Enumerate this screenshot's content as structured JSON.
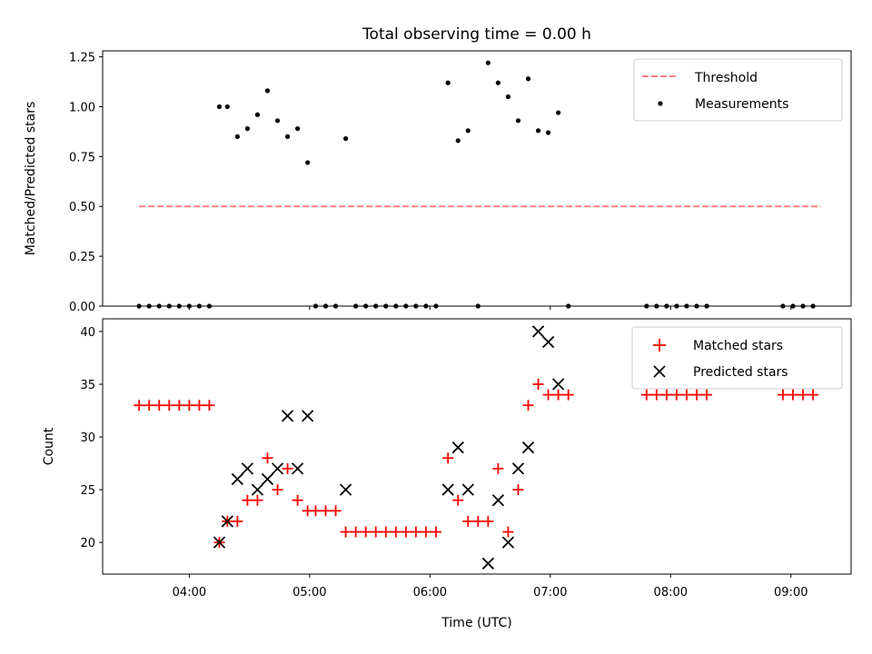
{
  "chart_data": [
    {
      "type": "scatter",
      "title": "Total observing time = 0.00 h",
      "xlabel": "",
      "ylabel": "Matched/Predicted stars",
      "ylim": [
        0,
        1.28
      ],
      "yticks": [
        0,
        0.25,
        0.5,
        0.75,
        1.0,
        1.25
      ],
      "ytick_labels": [
        "0.00",
        "0.25",
        "0.50",
        "0.75",
        "1.00",
        "1.25"
      ],
      "xlim_hours": [
        3.28,
        9.5
      ],
      "grid": false,
      "legend_position": "top-right",
      "legend": [
        "Threshold",
        "Measurements"
      ],
      "threshold": {
        "name": "Threshold",
        "value": 0.5,
        "x_start": "03:35",
        "x_end": "09:15",
        "color": "#ff7f7f",
        "style": "dashed"
      },
      "measurements": {
        "name": "Measurements",
        "color": "#000000",
        "points": [
          [
            "03:35",
            0.0
          ],
          [
            "03:40",
            0.0
          ],
          [
            "03:45",
            0.0
          ],
          [
            "03:50",
            0.0
          ],
          [
            "03:55",
            0.0
          ],
          [
            "04:00",
            0.0
          ],
          [
            "04:05",
            0.0
          ],
          [
            "04:10",
            0.0
          ],
          [
            "04:15",
            1.0
          ],
          [
            "04:19",
            1.0
          ],
          [
            "04:24",
            0.85
          ],
          [
            "04:29",
            0.89
          ],
          [
            "04:34",
            0.96
          ],
          [
            "04:39",
            1.08
          ],
          [
            "04:44",
            0.93
          ],
          [
            "04:49",
            0.85
          ],
          [
            "04:54",
            0.89
          ],
          [
            "04:59",
            0.72
          ],
          [
            "05:03",
            0.0
          ],
          [
            "05:08",
            0.0
          ],
          [
            "05:13",
            0.0
          ],
          [
            "05:18",
            0.84
          ],
          [
            "05:23",
            0.0
          ],
          [
            "05:28",
            0.0
          ],
          [
            "05:33",
            0.0
          ],
          [
            "05:38",
            0.0
          ],
          [
            "05:43",
            0.0
          ],
          [
            "05:48",
            0.0
          ],
          [
            "05:53",
            0.0
          ],
          [
            "05:58",
            0.0
          ],
          [
            "06:03",
            0.0
          ],
          [
            "06:09",
            1.12
          ],
          [
            "06:14",
            0.83
          ],
          [
            "06:19",
            0.88
          ],
          [
            "06:24",
            0.0
          ],
          [
            "06:29",
            1.22
          ],
          [
            "06:34",
            1.12
          ],
          [
            "06:39",
            1.05
          ],
          [
            "06:44",
            0.93
          ],
          [
            "06:49",
            1.14
          ],
          [
            "06:54",
            0.88
          ],
          [
            "06:59",
            0.87
          ],
          [
            "07:04",
            0.97
          ],
          [
            "07:09",
            0.0
          ],
          [
            "07:48",
            0.0
          ],
          [
            "07:53",
            0.0
          ],
          [
            "07:58",
            0.0
          ],
          [
            "08:03",
            0.0
          ],
          [
            "08:08",
            0.0
          ],
          [
            "08:13",
            0.0
          ],
          [
            "08:18",
            0.0
          ],
          [
            "08:56",
            0.0
          ],
          [
            "09:01",
            0.0
          ],
          [
            "09:06",
            0.0
          ],
          [
            "09:11",
            0.0
          ]
        ]
      }
    },
    {
      "type": "scatter",
      "title": "",
      "xlabel": "Time (UTC)",
      "ylabel": "Count",
      "ylim": [
        17,
        41.2
      ],
      "yticks": [
        20,
        25,
        30,
        35,
        40
      ],
      "xlim_hours": [
        3.28,
        9.5
      ],
      "xticks": [
        "04:00",
        "05:00",
        "06:00",
        "07:00",
        "08:00",
        "09:00"
      ],
      "grid": false,
      "legend_position": "top-right",
      "legend": [
        "Matched stars",
        "Predicted stars"
      ],
      "series": [
        {
          "name": "Matched stars",
          "marker": "+",
          "color": "#ff0000",
          "points": [
            [
              "03:35",
              33
            ],
            [
              "03:40",
              33
            ],
            [
              "03:45",
              33
            ],
            [
              "03:50",
              33
            ],
            [
              "03:55",
              33
            ],
            [
              "04:00",
              33
            ],
            [
              "04:05",
              33
            ],
            [
              "04:10",
              33
            ],
            [
              "04:15",
              20
            ],
            [
              "04:19",
              22
            ],
            [
              "04:24",
              22
            ],
            [
              "04:29",
              24
            ],
            [
              "04:34",
              24
            ],
            [
              "04:39",
              28
            ],
            [
              "04:44",
              25
            ],
            [
              "04:49",
              27
            ],
            [
              "04:54",
              24
            ],
            [
              "04:59",
              23
            ],
            [
              "05:03",
              23
            ],
            [
              "05:08",
              23
            ],
            [
              "05:13",
              23
            ],
            [
              "05:18",
              21
            ],
            [
              "05:23",
              21
            ],
            [
              "05:28",
              21
            ],
            [
              "05:33",
              21
            ],
            [
              "05:38",
              21
            ],
            [
              "05:43",
              21
            ],
            [
              "05:48",
              21
            ],
            [
              "05:53",
              21
            ],
            [
              "05:58",
              21
            ],
            [
              "06:03",
              21
            ],
            [
              "06:09",
              28
            ],
            [
              "06:14",
              24
            ],
            [
              "06:19",
              22
            ],
            [
              "06:24",
              22
            ],
            [
              "06:29",
              22
            ],
            [
              "06:34",
              27
            ],
            [
              "06:39",
              21
            ],
            [
              "06:44",
              25
            ],
            [
              "06:49",
              33
            ],
            [
              "06:54",
              35
            ],
            [
              "06:59",
              34
            ],
            [
              "07:04",
              34
            ],
            [
              "07:09",
              34
            ],
            [
              "07:48",
              34
            ],
            [
              "07:53",
              34
            ],
            [
              "07:58",
              34
            ],
            [
              "08:03",
              34
            ],
            [
              "08:08",
              34
            ],
            [
              "08:13",
              34
            ],
            [
              "08:18",
              34
            ],
            [
              "08:56",
              34
            ],
            [
              "09:01",
              34
            ],
            [
              "09:06",
              34
            ],
            [
              "09:11",
              34
            ]
          ]
        },
        {
          "name": "Predicted stars",
          "marker": "x",
          "color": "#000000",
          "points": [
            [
              "04:15",
              20
            ],
            [
              "04:19",
              22
            ],
            [
              "04:24",
              26
            ],
            [
              "04:29",
              27
            ],
            [
              "04:34",
              25
            ],
            [
              "04:39",
              26
            ],
            [
              "04:44",
              27
            ],
            [
              "04:49",
              32
            ],
            [
              "04:54",
              27
            ],
            [
              "04:59",
              32
            ],
            [
              "05:18",
              25
            ],
            [
              "06:09",
              25
            ],
            [
              "06:14",
              29
            ],
            [
              "06:19",
              25
            ],
            [
              "06:29",
              18
            ],
            [
              "06:34",
              24
            ],
            [
              "06:39",
              20
            ],
            [
              "06:44",
              27
            ],
            [
              "06:49",
              29
            ],
            [
              "06:54",
              40
            ],
            [
              "06:59",
              39
            ],
            [
              "07:04",
              35
            ]
          ]
        }
      ]
    }
  ]
}
